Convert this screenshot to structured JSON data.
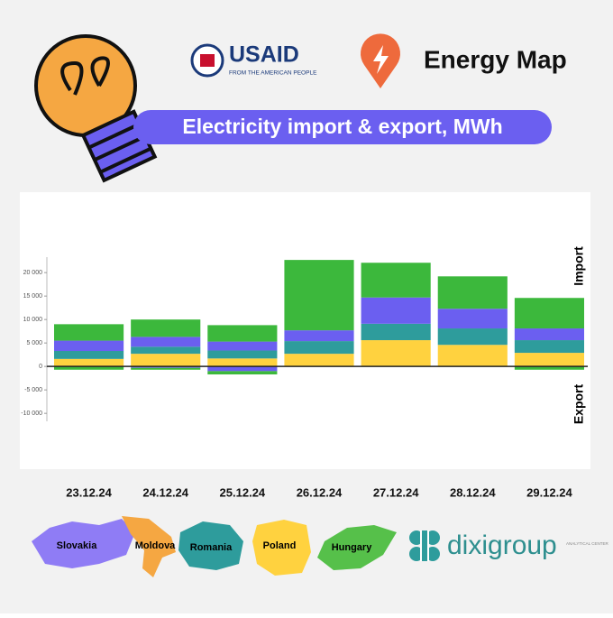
{
  "header": {
    "usaid": "USAID",
    "usaid_tagline": "FROM THE AMERICAN PEOPLE",
    "brand": "Energy Map",
    "title": "Electricity import & export, MWh"
  },
  "chart_data": {
    "type": "stacked-bar",
    "categories": [
      "23.12.24",
      "24.12.24",
      "25.12.24",
      "26.12.24",
      "27.12.24",
      "28.12.24",
      "29.12.24"
    ],
    "series": [
      {
        "name": "Poland",
        "color": "#ffd23f",
        "values": [
          1600,
          2700,
          1700,
          2700,
          5600,
          4600,
          2900
        ],
        "export": [
          null,
          null,
          null,
          null,
          null,
          null,
          null
        ]
      },
      {
        "name": "Romania",
        "color": "#2e9c9c",
        "values": [
          1700,
          1500,
          1700,
          2700,
          3500,
          3500,
          2700
        ],
        "export": [
          null,
          null,
          null,
          null,
          null,
          null,
          null
        ]
      },
      {
        "name": "Slovakia",
        "color": "#6b5ff0",
        "values": [
          2200,
          2100,
          1900,
          2300,
          5600,
          4200,
          2500
        ],
        "export": [
          null,
          -300,
          -1000,
          null,
          null,
          null,
          null
        ]
      },
      {
        "name": "Moldova",
        "color": "#f5a742",
        "values": [
          0,
          0,
          0,
          0,
          0,
          0,
          0
        ],
        "export": [
          null,
          null,
          null,
          null,
          null,
          null,
          null
        ]
      },
      {
        "name": "Hungary",
        "color": "#3cb83c",
        "values": [
          3500,
          3700,
          3500,
          15000,
          7400,
          6900,
          6500
        ],
        "export": [
          -700,
          -400,
          -700,
          null,
          null,
          null,
          -700
        ]
      }
    ],
    "ylim": [
      -11700,
      23300
    ],
    "yticks": [
      {
        "value": 20000,
        "label": "20 000"
      },
      {
        "value": 15000,
        "label": "15 000"
      },
      {
        "value": 10000,
        "label": "10 000"
      },
      {
        "value": 5000,
        "label": "5 000"
      },
      0,
      {
        "value": -5000,
        "label": "-5 000"
      },
      {
        "value": -10000,
        "label": "-10 000"
      }
    ],
    "annotations": [
      "Import",
      "Export"
    ]
  },
  "footer": {
    "maps": [
      "Slovakia",
      "Moldova",
      "Romania",
      "Poland",
      "Hungary"
    ],
    "logo": "dixigroup",
    "logo_tagline": "ANALYTICAL CENTER"
  }
}
